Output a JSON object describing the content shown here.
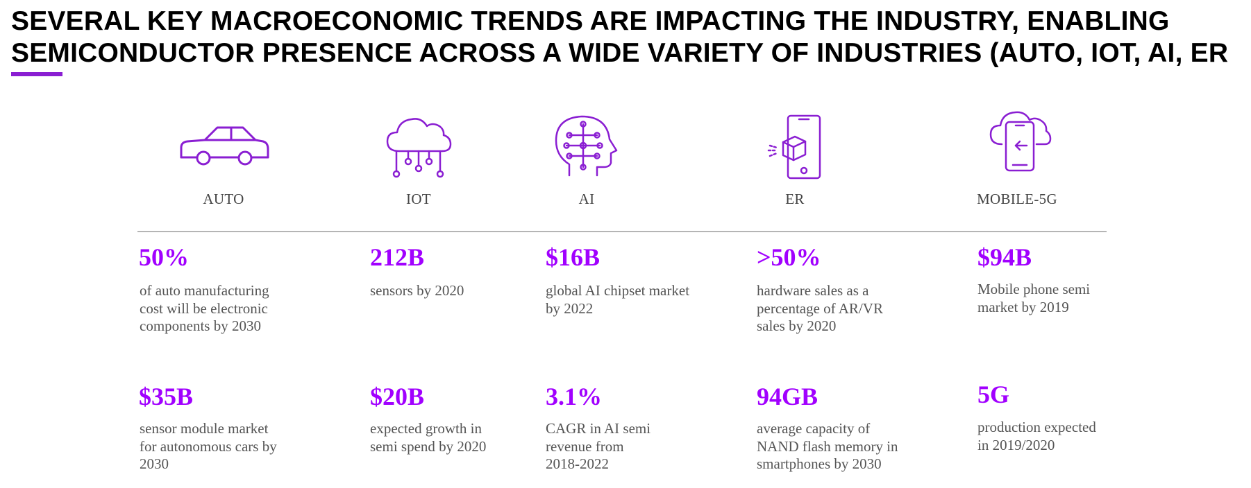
{
  "title": {
    "line1": "SEVERAL KEY MACROECONOMIC TRENDS ARE IMPACTING THE INDUSTRY, ENABLING",
    "line2": "SEMICONDUCTOR PRESENCE ACROSS A WIDE VARIETY OF INDUSTRIES (AUTO, IOT, AI, ER"
  },
  "colors": {
    "accent": "#a100ff",
    "icon": "#8a1ed2",
    "divider": "#b5b5b5",
    "text": "#555555"
  },
  "columns": [
    {
      "label": "AUTO",
      "icon": "car-icon",
      "rows": [
        {
          "value": "50%",
          "lines": [
            "of auto manufacturing",
            "cost will be electronic",
            "components by 2030"
          ]
        },
        {
          "value": "$35B",
          "lines": [
            "sensor module market",
            "for autonomous cars by",
            "2030"
          ]
        }
      ]
    },
    {
      "label": "IOT",
      "icon": "cloud-network-icon",
      "rows": [
        {
          "value": "212B",
          "lines": [
            "sensors by 2020"
          ]
        },
        {
          "value": "$20B",
          "lines": [
            "expected growth in",
            "semi spend by 2020"
          ]
        }
      ]
    },
    {
      "label": "AI",
      "icon": "brain-circuit-icon",
      "rows": [
        {
          "value": "$16B",
          "lines": [
            "global AI chipset market",
            "by 2022"
          ]
        },
        {
          "value": "3.1%",
          "lines": [
            "CAGR in AI semi",
            "revenue from",
            "2018-2022"
          ]
        }
      ]
    },
    {
      "label": "ER",
      "icon": "phone-ar-cube-icon",
      "rows": [
        {
          "value": ">50%",
          "lines": [
            "hardware sales as a",
            "percentage of AR/VR",
            "sales by 2020"
          ]
        },
        {
          "value": "94GB",
          "lines": [
            "average capacity of",
            "NAND flash memory in",
            "smartphones by 2030"
          ]
        }
      ]
    },
    {
      "label": "MOBILE-5G",
      "icon": "cloud-phone-icon",
      "rows": [
        {
          "value": "$94B",
          "lines": [
            "Mobile phone semi",
            "market by 2019"
          ]
        },
        {
          "value": "5G",
          "lines": [
            "production expected",
            "in 2019/2020"
          ]
        }
      ]
    }
  ]
}
